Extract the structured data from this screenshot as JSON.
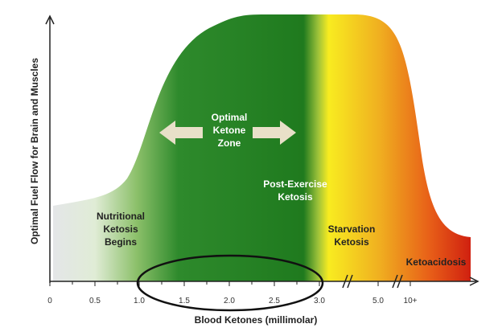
{
  "axis": {
    "y_label": "Optimal Fuel Flow for Brain and Muscles",
    "x_label": "Blood Ketones (millimolar)",
    "ticks": [
      "0",
      "0.5",
      "1.0",
      "1.5",
      "2.0",
      "2.5",
      "3.0",
      "5.0",
      "10+"
    ]
  },
  "zones": [
    {
      "label_lines": [
        "Nutritional",
        "Ketosis",
        "Begins"
      ]
    },
    {
      "label_lines": [
        "Optimal",
        "Ketone",
        "Zone"
      ]
    },
    {
      "label_lines": [
        "Post-Exercise",
        "Ketosis"
      ]
    },
    {
      "label_lines": [
        "Starvation",
        "Ketosis"
      ]
    },
    {
      "label_lines": [
        "Ketoacidosis"
      ]
    }
  ]
}
